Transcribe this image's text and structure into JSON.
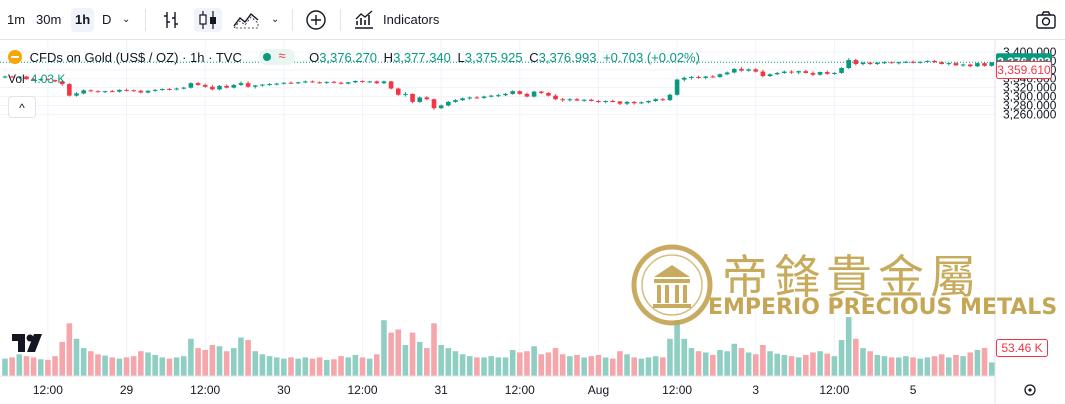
{
  "toolbar": {
    "intervals": [
      "1m",
      "30m",
      "1h",
      "D"
    ],
    "active_interval": "1h",
    "indicators_label": "Indicators",
    "icons": [
      "bars-style-icon",
      "candles-style-icon",
      "area-style-icon",
      "chevron-down-icon",
      "add-compare-icon",
      "indicators-icon",
      "camera-icon"
    ]
  },
  "legend": {
    "symbol": "CFDs on Gold (US$ / OZ)",
    "interval": "1h",
    "source": "TVC",
    "open_label": "O",
    "open": "3,376.270",
    "high_label": "H",
    "high": "3,377.340",
    "low_label": "L",
    "low": "3,375.925",
    "close_label": "C",
    "close": "3,376.993",
    "change": "+0.703 (+0.02%)",
    "volume_label": "Vol",
    "volume": "4.03 K"
  },
  "collapse_symbol": "^",
  "watermark": {
    "chinese": "帝鋒貴金屬",
    "english": "EMPERIO PRECIOUS METALS"
  },
  "colors": {
    "up": "#089981",
    "down": "#f23645",
    "volume_up": "#8fcfc3",
    "volume_down": "#f5a6ab",
    "grid": "#f0f3fa",
    "gold": "#c2a24c"
  },
  "chart_data": {
    "type": "candlestick",
    "title": "CFDs on Gold (US$ / OZ) · 1h · TVC",
    "ylim": [
      3270,
      3405
    ],
    "grid": true,
    "price_axis": {
      "ticks": [
        "3,400.000",
        "3,380.000",
        "3,360.000",
        "3,340.000",
        "3,320.000",
        "3,300.000",
        "3,280.000",
        "3,260.000"
      ],
      "tick_values": [
        3400,
        3380,
        3360,
        3340,
        3320,
        3300,
        3280,
        3260
      ]
    },
    "time_axis": {
      "labels": [
        "12:00",
        "29",
        "12:00",
        "30",
        "12:00",
        "31",
        "12:00",
        "Aug",
        "12:00",
        "3",
        "12:00",
        "5"
      ],
      "label_index": [
        6,
        17,
        28,
        39,
        50,
        61,
        72,
        83,
        94,
        105,
        116,
        127
      ]
    },
    "last_price_label": "3,376.993",
    "last_price": 3376.993,
    "secondary_price_label": "3,359.610",
    "secondary_price": 3359.61,
    "volume_label": "53.46 K",
    "candles": [
      [
        3344,
        3347,
        3341,
        3345,
        0.28
      ],
      [
        3345,
        3347,
        3342,
        3343,
        0.3
      ],
      [
        3343,
        3346,
        3340,
        3345,
        0.35
      ],
      [
        3345,
        3346,
        3338,
        3339,
        0.32
      ],
      [
        3339,
        3341,
        3336,
        3338,
        0.3
      ],
      [
        3338,
        3341,
        3335,
        3339,
        0.27
      ],
      [
        3339,
        3341,
        3336,
        3337,
        0.26
      ],
      [
        3337,
        3338,
        3332,
        3334,
        0.32
      ],
      [
        3334,
        3336,
        3324,
        3328,
        0.55
      ],
      [
        3328,
        3330,
        3300,
        3302,
        0.85
      ],
      [
        3302,
        3310,
        3300,
        3307,
        0.6
      ],
      [
        3307,
        3316,
        3305,
        3314,
        0.45
      ],
      [
        3314,
        3316,
        3311,
        3312,
        0.4
      ],
      [
        3312,
        3314,
        3309,
        3310,
        0.35
      ],
      [
        3310,
        3313,
        3308,
        3312,
        0.33
      ],
      [
        3312,
        3315,
        3310,
        3311,
        0.3
      ],
      [
        3311,
        3316,
        3309,
        3315,
        0.28
      ],
      [
        3315,
        3318,
        3312,
        3314,
        0.3
      ],
      [
        3314,
        3316,
        3311,
        3313,
        0.32
      ],
      [
        3313,
        3315,
        3307,
        3309,
        0.4
      ],
      [
        3309,
        3314,
        3307,
        3313,
        0.38
      ],
      [
        3313,
        3317,
        3311,
        3315,
        0.34
      ],
      [
        3315,
        3318,
        3313,
        3317,
        0.3
      ],
      [
        3317,
        3319,
        3314,
        3316,
        0.28
      ],
      [
        3316,
        3320,
        3314,
        3318,
        0.3
      ],
      [
        3318,
        3322,
        3316,
        3320,
        0.32
      ],
      [
        3320,
        3332,
        3318,
        3330,
        0.6
      ],
      [
        3330,
        3333,
        3324,
        3326,
        0.45
      ],
      [
        3326,
        3329,
        3320,
        3322,
        0.42
      ],
      [
        3322,
        3326,
        3314,
        3316,
        0.5
      ],
      [
        3316,
        3326,
        3314,
        3324,
        0.48
      ],
      [
        3324,
        3327,
        3318,
        3320,
        0.4
      ],
      [
        3320,
        3328,
        3318,
        3326,
        0.45
      ],
      [
        3326,
        3334,
        3324,
        3330,
        0.62
      ],
      [
        3330,
        3334,
        3320,
        3322,
        0.58
      ],
      [
        3322,
        3326,
        3318,
        3325,
        0.4
      ],
      [
        3325,
        3328,
        3322,
        3327,
        0.35
      ],
      [
        3327,
        3330,
        3324,
        3328,
        0.32
      ],
      [
        3328,
        3331,
        3325,
        3329,
        0.3
      ],
      [
        3329,
        3332,
        3327,
        3331,
        0.28
      ],
      [
        3331,
        3334,
        3329,
        3330,
        0.3
      ],
      [
        3330,
        3333,
        3328,
        3332,
        0.28
      ],
      [
        3332,
        3336,
        3330,
        3334,
        0.3
      ],
      [
        3334,
        3336,
        3331,
        3332,
        0.28
      ],
      [
        3332,
        3334,
        3329,
        3331,
        0.3
      ],
      [
        3331,
        3334,
        3328,
        3333,
        0.26
      ],
      [
        3333,
        3335,
        3330,
        3331,
        0.27
      ],
      [
        3331,
        3334,
        3327,
        3329,
        0.32
      ],
      [
        3329,
        3333,
        3327,
        3332,
        0.3
      ],
      [
        3332,
        3336,
        3330,
        3335,
        0.34
      ],
      [
        3335,
        3336,
        3331,
        3333,
        0.3
      ],
      [
        3333,
        3335,
        3331,
        3334,
        0.28
      ],
      [
        3334,
        3336,
        3328,
        3330,
        0.35
      ],
      [
        3330,
        3336,
        3328,
        3334,
        0.9
      ],
      [
        3334,
        3335,
        3316,
        3318,
        0.7
      ],
      [
        3318,
        3320,
        3302,
        3304,
        0.75
      ],
      [
        3304,
        3310,
        3300,
        3306,
        0.5
      ],
      [
        3306,
        3307,
        3285,
        3288,
        0.7
      ],
      [
        3288,
        3300,
        3286,
        3298,
        0.55
      ],
      [
        3298,
        3301,
        3292,
        3294,
        0.45
      ],
      [
        3294,
        3296,
        3270,
        3274,
        0.85
      ],
      [
        3274,
        3282,
        3272,
        3280,
        0.5
      ],
      [
        3280,
        3290,
        3278,
        3288,
        0.45
      ],
      [
        3288,
        3294,
        3286,
        3292,
        0.4
      ],
      [
        3292,
        3298,
        3290,
        3296,
        0.35
      ],
      [
        3296,
        3300,
        3293,
        3298,
        0.32
      ],
      [
        3298,
        3301,
        3295,
        3297,
        0.3
      ],
      [
        3297,
        3302,
        3295,
        3300,
        0.3
      ],
      [
        3300,
        3304,
        3298,
        3302,
        0.32
      ],
      [
        3302,
        3306,
        3299,
        3303,
        0.3
      ],
      [
        3303,
        3308,
        3301,
        3306,
        0.3
      ],
      [
        3306,
        3314,
        3304,
        3312,
        0.42
      ],
      [
        3312,
        3314,
        3304,
        3306,
        0.38
      ],
      [
        3306,
        3309,
        3298,
        3300,
        0.4
      ],
      [
        3300,
        3313,
        3298,
        3311,
        0.48
      ],
      [
        3311,
        3313,
        3306,
        3308,
        0.35
      ],
      [
        3308,
        3310,
        3300,
        3302,
        0.38
      ],
      [
        3302,
        3305,
        3292,
        3294,
        0.45
      ],
      [
        3294,
        3297,
        3288,
        3292,
        0.35
      ],
      [
        3292,
        3296,
        3289,
        3294,
        0.32
      ],
      [
        3294,
        3297,
        3290,
        3291,
        0.34
      ],
      [
        3291,
        3294,
        3288,
        3293,
        0.3
      ],
      [
        3293,
        3295,
        3289,
        3290,
        0.32
      ],
      [
        3290,
        3292,
        3286,
        3288,
        0.34
      ],
      [
        3288,
        3291,
        3285,
        3290,
        0.3
      ],
      [
        3290,
        3293,
        3287,
        3289,
        0.28
      ],
      [
        3289,
        3290,
        3281,
        3284,
        0.4
      ],
      [
        3284,
        3290,
        3281,
        3288,
        0.35
      ],
      [
        3288,
        3290,
        3282,
        3285,
        0.3
      ],
      [
        3285,
        3289,
        3283,
        3287,
        0.28
      ],
      [
        3287,
        3291,
        3285,
        3290,
        0.3
      ],
      [
        3290,
        3296,
        3288,
        3294,
        0.32
      ],
      [
        3294,
        3297,
        3290,
        3292,
        0.3
      ],
      [
        3292,
        3306,
        3290,
        3304,
        0.6
      ],
      [
        3304,
        3340,
        3302,
        3338,
        0.9
      ],
      [
        3338,
        3345,
        3334,
        3342,
        0.6
      ],
      [
        3342,
        3346,
        3338,
        3344,
        0.45
      ],
      [
        3344,
        3347,
        3340,
        3342,
        0.4
      ],
      [
        3342,
        3346,
        3339,
        3345,
        0.38
      ],
      [
        3345,
        3348,
        3342,
        3344,
        0.34
      ],
      [
        3344,
        3352,
        3342,
        3350,
        0.42
      ],
      [
        3350,
        3356,
        3348,
        3354,
        0.4
      ],
      [
        3354,
        3364,
        3352,
        3362,
        0.52
      ],
      [
        3362,
        3366,
        3356,
        3358,
        0.45
      ],
      [
        3358,
        3363,
        3356,
        3361,
        0.38
      ],
      [
        3361,
        3364,
        3354,
        3356,
        0.35
      ],
      [
        3356,
        3360,
        3343,
        3346,
        0.5
      ],
      [
        3346,
        3352,
        3344,
        3350,
        0.4
      ],
      [
        3350,
        3355,
        3348,
        3353,
        0.36
      ],
      [
        3353,
        3358,
        3351,
        3356,
        0.34
      ],
      [
        3356,
        3359,
        3351,
        3354,
        0.32
      ],
      [
        3354,
        3358,
        3350,
        3357,
        0.3
      ],
      [
        3357,
        3360,
        3352,
        3353,
        0.34
      ],
      [
        3353,
        3356,
        3346,
        3349,
        0.38
      ],
      [
        3349,
        3356,
        3347,
        3355,
        0.4
      ],
      [
        3355,
        3358,
        3349,
        3351,
        0.36
      ],
      [
        3351,
        3355,
        3349,
        3353,
        0.32
      ],
      [
        3353,
        3366,
        3351,
        3364,
        0.58
      ],
      [
        3364,
        3386,
        3362,
        3382,
        0.95
      ],
      [
        3382,
        3385,
        3370,
        3373,
        0.6
      ],
      [
        3373,
        3378,
        3370,
        3376,
        0.45
      ],
      [
        3376,
        3378,
        3371,
        3373,
        0.4
      ],
      [
        3373,
        3377,
        3371,
        3376,
        0.34
      ],
      [
        3376,
        3379,
        3373,
        3377,
        0.32
      ],
      [
        3377,
        3379,
        3374,
        3375,
        0.3
      ],
      [
        3375,
        3378,
        3372,
        3377,
        0.3
      ],
      [
        3377,
        3380,
        3375,
        3378,
        0.32
      ],
      [
        3378,
        3381,
        3374,
        3376,
        0.3
      ],
      [
        3376,
        3379,
        3374,
        3378,
        0.28
      ],
      [
        3378,
        3381,
        3376,
        3380,
        0.3
      ],
      [
        3380,
        3382,
        3376,
        3377,
        0.32
      ],
      [
        3377,
        3379,
        3372,
        3373,
        0.35
      ],
      [
        3373,
        3376,
        3370,
        3375,
        0.3
      ],
      [
        3375,
        3377,
        3369,
        3370,
        0.34
      ],
      [
        3370,
        3374,
        3367,
        3372,
        0.32
      ],
      [
        3372,
        3374,
        3366,
        3368,
        0.38
      ],
      [
        3368,
        3376,
        3366,
        3375,
        0.42
      ],
      [
        3375,
        3377,
        3367,
        3369,
        0.45
      ],
      [
        3369,
        3377,
        3367,
        3377,
        0.22
      ]
    ]
  }
}
